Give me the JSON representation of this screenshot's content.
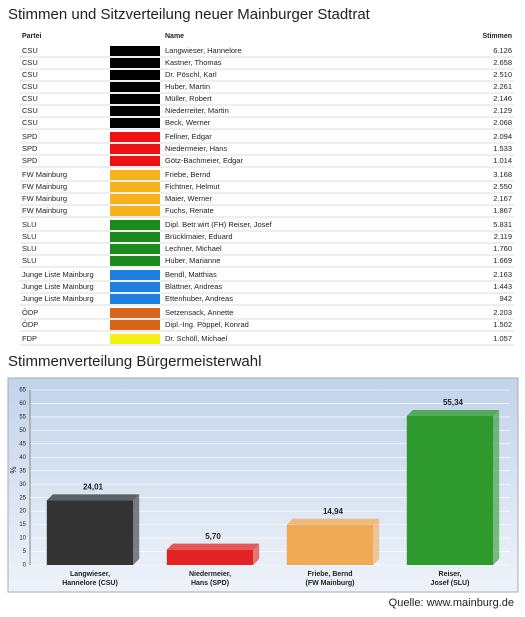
{
  "table": {
    "title": "Stimmen und Sitzverteilung neuer Mainburger Stadtrat",
    "headers": [
      "Partei",
      "Name",
      "Stimmen"
    ],
    "rows": [
      {
        "party": "CSU",
        "color": "#000000",
        "name": "Langwieser, Hannelore",
        "votes": "6.126"
      },
      {
        "party": "CSU",
        "color": "#000000",
        "name": "Kastner, Thomas",
        "votes": "2.658"
      },
      {
        "party": "CSU",
        "color": "#000000",
        "name": "Dr. Pöschl, Karl",
        "votes": "2.510"
      },
      {
        "party": "CSU",
        "color": "#000000",
        "name": "Huber, Martin",
        "votes": "2.261"
      },
      {
        "party": "CSU",
        "color": "#000000",
        "name": "Müller, Robert",
        "votes": "2.146"
      },
      {
        "party": "CSU",
        "color": "#000000",
        "name": "Niederreiter, Martin",
        "votes": "2.129"
      },
      {
        "party": "CSU",
        "color": "#000000",
        "name": "Beck, Werner",
        "votes": "2.068"
      },
      {
        "party": "SPD",
        "color": "#ee1111",
        "name": "Fellner, Edgar",
        "votes": "2.094"
      },
      {
        "party": "SPD",
        "color": "#ee1111",
        "name": "Niedermeier, Hans",
        "votes": "1.533"
      },
      {
        "party": "SPD",
        "color": "#ee1111",
        "name": "Götz-Bachmeier, Edgar",
        "votes": "1.014"
      },
      {
        "party": "FW Mainburg",
        "color": "#f5b21b",
        "name": "Friebe, Bernd",
        "votes": "3.168"
      },
      {
        "party": "FW Mainburg",
        "color": "#f5b21b",
        "name": "Fichtner, Helmut",
        "votes": "2.550"
      },
      {
        "party": "FW Mainburg",
        "color": "#f5b21b",
        "name": "Maier, Werner",
        "votes": "2.167"
      },
      {
        "party": "FW Mainburg",
        "color": "#f5b21b",
        "name": "Fuchs, Renate",
        "votes": "1.867"
      },
      {
        "party": "SLU",
        "color": "#1a8a1a",
        "name": "Dipl. Betr.wirt (FH) Reiser, Josef",
        "votes": "5.831"
      },
      {
        "party": "SLU",
        "color": "#1a8a1a",
        "name": "Brücklmaier, Eduard",
        "votes": "2.119"
      },
      {
        "party": "SLU",
        "color": "#1a8a1a",
        "name": "Lechner, Michael",
        "votes": "1.760"
      },
      {
        "party": "SLU",
        "color": "#1a8a1a",
        "name": "Huber, Marianne",
        "votes": "1.669"
      },
      {
        "party": "Junge Liste Mainburg",
        "color": "#1e7fe0",
        "name": "Bendl, Matthias",
        "votes": "2.163"
      },
      {
        "party": "Junge Liste Mainburg",
        "color": "#1e7fe0",
        "name": "Blattner, Andreas",
        "votes": "1.443"
      },
      {
        "party": "Junge Liste Mainburg",
        "color": "#1e7fe0",
        "name": "Ettenhuber, Andreas",
        "votes": "942"
      },
      {
        "party": "ÖDP",
        "color": "#d8661a",
        "name": "Setzensack, Annette",
        "votes": "2.203"
      },
      {
        "party": "ÖDP",
        "color": "#d8661a",
        "name": "Dipl.-Ing. Pöppel, Konrad",
        "votes": "1.502"
      },
      {
        "party": "FDP",
        "color": "#f2f21a",
        "name": "Dr. Schöll, Michael",
        "votes": "1.057"
      }
    ]
  },
  "chart_data": {
    "type": "bar",
    "title": "Stimmenverteilung Bürgermeisterwahl",
    "ylabel": "%",
    "categories": [
      "Langwieser, Hannelore (CSU)",
      "Niedermeier, Hans (SPD)",
      "Friebe, Bernd (FW Mainburg)",
      "Reiser, Josef (SLU)"
    ],
    "values": [
      24.01,
      5.7,
      14.94,
      55.34
    ],
    "value_labels": [
      "24,01",
      "5,70",
      "14,94",
      "55,34"
    ],
    "colors": [
      "#333333",
      "#e42424",
      "#f0aa55",
      "#2e9a2e"
    ],
    "ylim": [
      0,
      65
    ],
    "yticks": [
      0,
      5,
      10,
      15,
      20,
      25,
      30,
      35,
      40,
      45,
      50,
      55,
      60,
      65
    ],
    "grid": true
  },
  "source": "Quelle: www.mainburg.de"
}
